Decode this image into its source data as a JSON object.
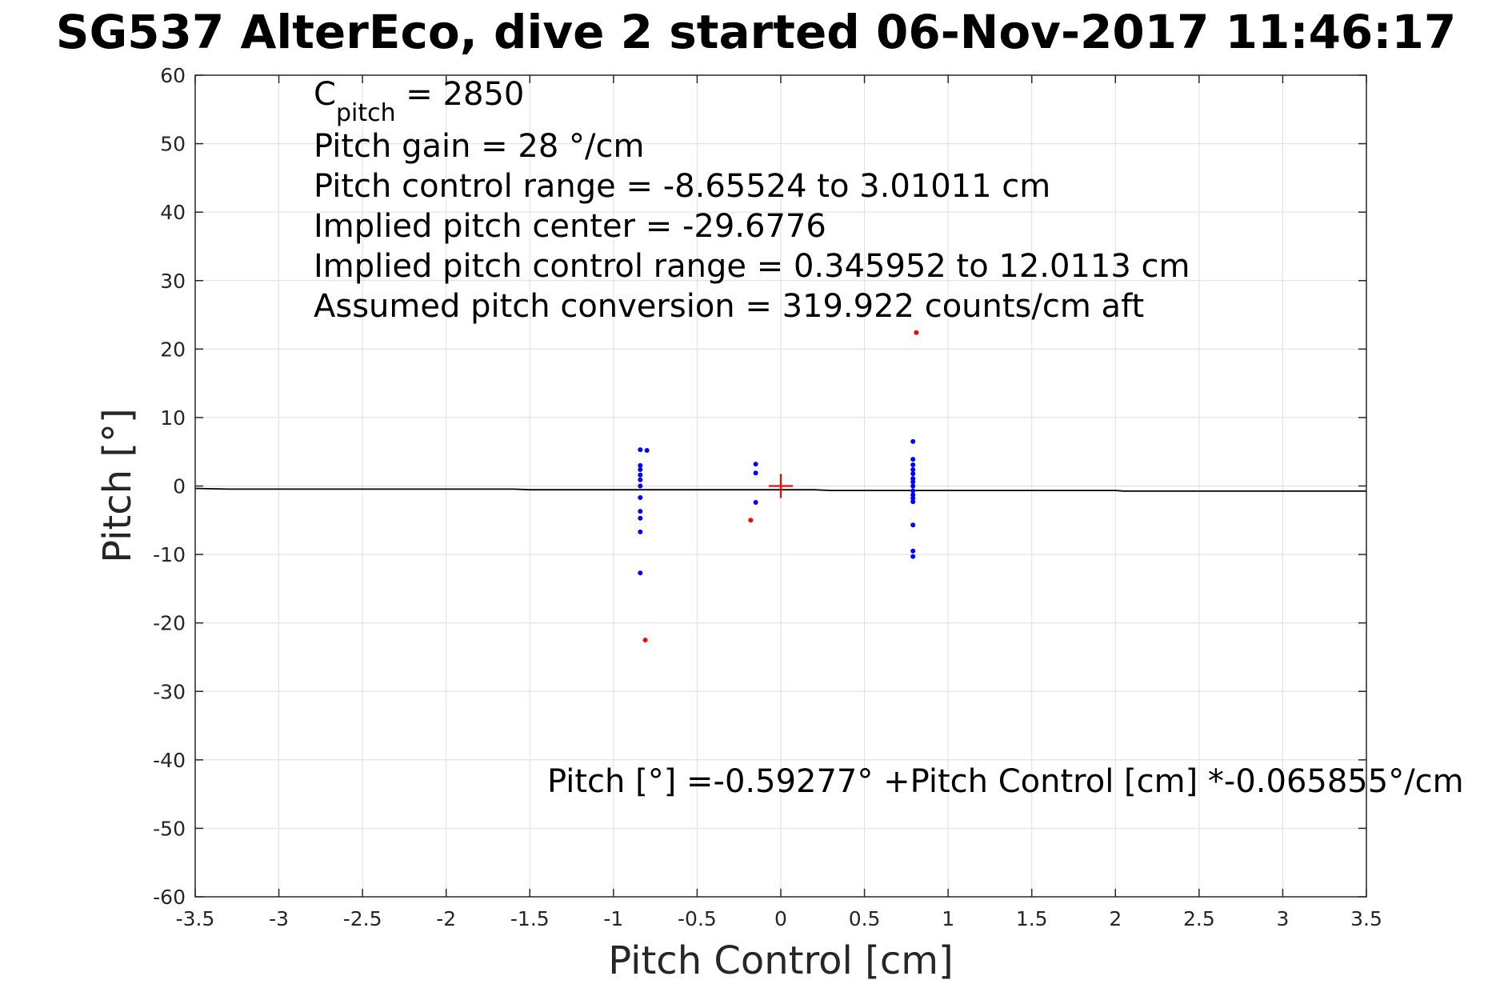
{
  "chart_data": {
    "type": "scatter",
    "title": "SG537 AlterEco, dive 2 started 06-Nov-2017 11:46:17",
    "xlabel": "Pitch Control [cm]",
    "ylabel": "Pitch [°]",
    "xlim": [
      -3.5,
      3.5
    ],
    "ylim": [
      -60,
      60
    ],
    "xticks": [
      -3.5,
      -3,
      -2.5,
      -2,
      -1.5,
      -1,
      -0.5,
      0,
      0.5,
      1,
      1.5,
      2,
      2.5,
      3,
      3.5
    ],
    "yticks": [
      -60,
      -50,
      -40,
      -30,
      -20,
      -10,
      0,
      10,
      20,
      30,
      40,
      50,
      60
    ],
    "xtick_labels": [
      "-3.5",
      "-3",
      "-2.5",
      "-2",
      "-1.5",
      "-1",
      "-0.5",
      "0",
      "0.5",
      "1",
      "1.5",
      "2",
      "2.5",
      "3",
      "3.5"
    ],
    "ytick_labels": [
      "-60",
      "-50",
      "-40",
      "-30",
      "-20",
      "-10",
      "0",
      "10",
      "20",
      "30",
      "40",
      "50",
      "60"
    ],
    "grid": true,
    "annotations": {
      "c_pitch_base": "C",
      "c_pitch_sub": "pitch",
      "c_pitch_value": " = 2850",
      "lines": [
        "Pitch gain = 28 °/cm",
        "Pitch control range = -8.65524 to 3.01011 cm",
        "Implied pitch center = -29.6776",
        "Implied pitch control range = 0.345952 to 12.0113 cm",
        "Assumed pitch conversion = 319.922 counts/cm aft"
      ],
      "fit_equation": "Pitch [°] =-0.59277° +Pitch Control [cm] *-0.065855°/cm"
    },
    "series": [
      {
        "color": "#0000ff",
        "marker": "dot",
        "points": [
          [
            -0.84,
            5.3
          ],
          [
            -0.8,
            5.2
          ],
          [
            -0.84,
            3.0
          ],
          [
            -0.84,
            2.4
          ],
          [
            -0.84,
            1.6
          ],
          [
            -0.84,
            0.9
          ],
          [
            -0.84,
            0.0
          ],
          [
            -0.84,
            -1.7
          ],
          [
            -0.84,
            -3.7
          ],
          [
            -0.84,
            -4.7
          ],
          [
            -0.84,
            -6.7
          ],
          [
            -0.84,
            -12.7
          ],
          [
            -0.15,
            3.2
          ],
          [
            -0.15,
            1.9
          ],
          [
            -0.15,
            -2.4
          ],
          [
            0.79,
            6.5
          ],
          [
            0.79,
            3.9
          ],
          [
            0.79,
            3.1
          ],
          [
            0.79,
            2.4
          ],
          [
            0.79,
            1.8
          ],
          [
            0.79,
            1.1
          ],
          [
            0.79,
            0.6
          ],
          [
            0.79,
            0.0
          ],
          [
            0.79,
            -0.7
          ],
          [
            0.79,
            -1.3
          ],
          [
            0.79,
            -1.8
          ],
          [
            0.79,
            -2.3
          ],
          [
            0.79,
            -5.7
          ],
          [
            0.79,
            -9.5
          ],
          [
            0.79,
            -10.3
          ]
        ]
      },
      {
        "color": "#ff0000",
        "marker": "dot",
        "points": [
          [
            0.81,
            22.4
          ],
          [
            -0.81,
            -22.5
          ],
          [
            -0.18,
            -5.0
          ]
        ]
      },
      {
        "color": "#ff0000",
        "marker": "plus",
        "points": [
          [
            0.0,
            0.0
          ]
        ]
      },
      {
        "color": "#000000",
        "type": "line",
        "x": [
          -3.5,
          -3.3,
          -1.6,
          -1.5,
          0.2,
          0.3,
          2.0,
          2.05,
          3.5
        ],
        "y": [
          -0.35,
          -0.45,
          -0.45,
          -0.55,
          -0.55,
          -0.65,
          -0.65,
          -0.75,
          -0.75
        ]
      }
    ]
  }
}
